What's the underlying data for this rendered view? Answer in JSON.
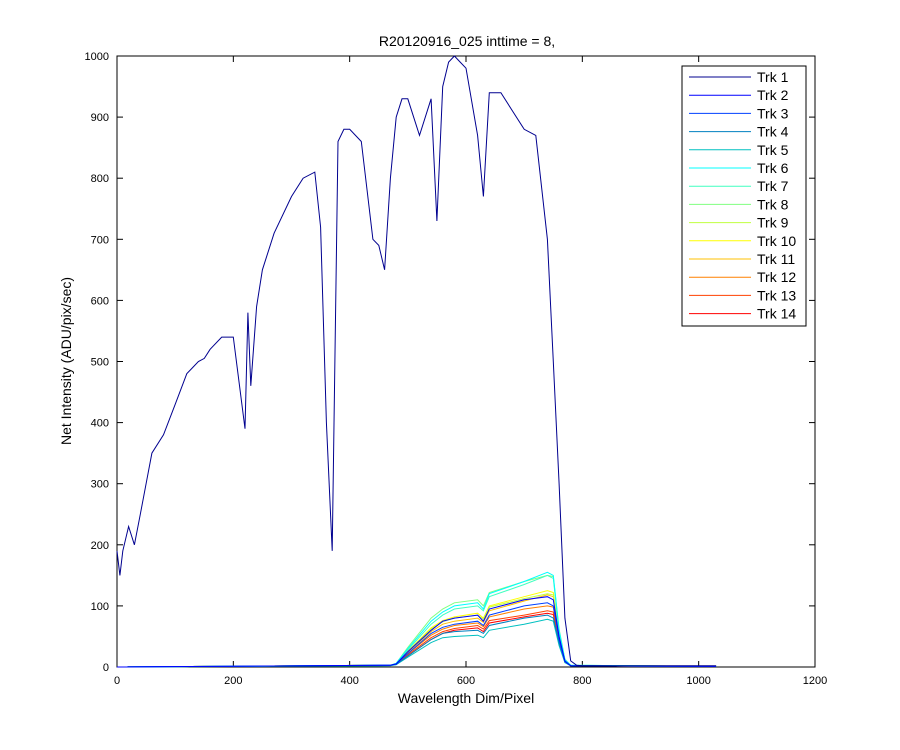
{
  "chart_data": {
    "type": "line",
    "title": "R20120916_025 inttime = 8,",
    "xlabel": "Wavelength Dim/Pixel",
    "ylabel": "Net Intensity (ADU/pix/sec)",
    "xlim": [
      0,
      1200
    ],
    "ylim": [
      0,
      1000
    ],
    "x_ticks": [
      "0",
      "200",
      "400",
      "600",
      "800",
      "1000",
      "1200"
    ],
    "y_ticks": [
      "0",
      "100",
      "200",
      "300",
      "400",
      "500",
      "600",
      "700",
      "800",
      "900",
      "1000"
    ],
    "grid": false,
    "legend_position": "top-right",
    "series": [
      {
        "name": "Trk 1",
        "color": "#00008f",
        "x": [
          0,
          5,
          10,
          20,
          30,
          40,
          50,
          60,
          80,
          100,
          120,
          130,
          140,
          150,
          160,
          180,
          200,
          220,
          225,
          230,
          240,
          250,
          270,
          300,
          320,
          340,
          350,
          360,
          370,
          380,
          390,
          400,
          420,
          440,
          450,
          460,
          470,
          480,
          490,
          500,
          520,
          540,
          550,
          560,
          570,
          580,
          590,
          600,
          620,
          630,
          640,
          660,
          680,
          700,
          720,
          740,
          750,
          760,
          770,
          780,
          790,
          800,
          1030
        ],
        "y": [
          190,
          150,
          190,
          230,
          200,
          250,
          300,
          350,
          380,
          430,
          480,
          490,
          500,
          505,
          520,
          540,
          540,
          390,
          580,
          460,
          590,
          650,
          710,
          770,
          800,
          810,
          720,
          400,
          190,
          860,
          880,
          880,
          860,
          700,
          690,
          650,
          800,
          900,
          930,
          930,
          870,
          930,
          730,
          950,
          990,
          1000,
          990,
          980,
          870,
          770,
          940,
          940,
          910,
          880,
          870,
          700,
          500,
          300,
          80,
          10,
          3,
          2,
          2
        ]
      },
      {
        "name": "Trk 2",
        "color": "#0000ff",
        "x": [
          0,
          470,
          480,
          500,
          540,
          560,
          580,
          620,
          630,
          640,
          700,
          740,
          750,
          760,
          770,
          780,
          1030
        ],
        "y": [
          0,
          3,
          5,
          25,
          60,
          75,
          80,
          85,
          75,
          95,
          110,
          115,
          110,
          50,
          10,
          2,
          1
        ]
      },
      {
        "name": "Trk 3",
        "color": "#0040ff",
        "x": [
          0,
          470,
          480,
          500,
          540,
          560,
          580,
          620,
          630,
          640,
          700,
          740,
          750,
          760,
          770,
          780,
          1030
        ],
        "y": [
          0,
          3,
          5,
          22,
          55,
          65,
          70,
          75,
          68,
          85,
          100,
          105,
          100,
          45,
          9,
          2,
          1
        ]
      },
      {
        "name": "Trk 4",
        "color": "#0080c0",
        "x": [
          0,
          470,
          480,
          500,
          540,
          560,
          580,
          620,
          630,
          640,
          700,
          740,
          750,
          760,
          770,
          780,
          1030
        ],
        "y": [
          0,
          3,
          4,
          18,
          45,
          55,
          58,
          60,
          55,
          68,
          80,
          85,
          80,
          40,
          8,
          2,
          1
        ]
      },
      {
        "name": "Trk 5",
        "color": "#00c0c0",
        "x": [
          0,
          470,
          480,
          500,
          540,
          560,
          580,
          620,
          630,
          640,
          700,
          740,
          750,
          760,
          770,
          780,
          1030
        ],
        "y": [
          0,
          2,
          4,
          16,
          40,
          48,
          50,
          52,
          48,
          60,
          70,
          78,
          75,
          35,
          7,
          2,
          1
        ]
      },
      {
        "name": "Trk 6",
        "color": "#00ffff",
        "x": [
          0,
          470,
          480,
          500,
          540,
          560,
          580,
          620,
          630,
          640,
          700,
          740,
          750,
          760,
          770,
          780,
          1030
        ],
        "y": [
          0,
          3,
          6,
          30,
          75,
          90,
          100,
          105,
          95,
          120,
          140,
          155,
          150,
          60,
          12,
          3,
          1
        ]
      },
      {
        "name": "Trk 7",
        "color": "#40ffc0",
        "x": [
          0,
          470,
          480,
          500,
          540,
          560,
          580,
          620,
          630,
          640,
          700,
          740,
          750,
          760,
          770,
          780,
          1030
        ],
        "y": [
          0,
          3,
          6,
          28,
          70,
          85,
          95,
          100,
          92,
          115,
          135,
          150,
          145,
          58,
          12,
          3,
          1
        ]
      },
      {
        "name": "Trk 8",
        "color": "#80ff80",
        "x": [
          0,
          470,
          480,
          500,
          540,
          560,
          580,
          620,
          630,
          640,
          700,
          740,
          750,
          760,
          770,
          780,
          1030
        ],
        "y": [
          0,
          3,
          6,
          32,
          80,
          95,
          105,
          110,
          100,
          122,
          140,
          150,
          148,
          62,
          13,
          3,
          1
        ]
      },
      {
        "name": "Trk 9",
        "color": "#c0ff40",
        "x": [
          0,
          470,
          480,
          500,
          540,
          560,
          580,
          620,
          630,
          640,
          700,
          740,
          750,
          760,
          770,
          780,
          1030
        ],
        "y": [
          0,
          3,
          5,
          25,
          62,
          74,
          80,
          85,
          78,
          98,
          112,
          120,
          118,
          52,
          10,
          2,
          1
        ]
      },
      {
        "name": "Trk 10",
        "color": "#ffff00",
        "x": [
          0,
          470,
          480,
          500,
          540,
          560,
          580,
          620,
          630,
          640,
          700,
          740,
          750,
          760,
          770,
          780,
          1030
        ],
        "y": [
          0,
          3,
          5,
          26,
          64,
          76,
          82,
          88,
          80,
          100,
          115,
          125,
          122,
          55,
          11,
          2,
          1
        ]
      },
      {
        "name": "Trk 11",
        "color": "#ffc000",
        "x": [
          0,
          470,
          480,
          500,
          540,
          560,
          580,
          620,
          630,
          640,
          700,
          740,
          750,
          760,
          770,
          780,
          1030
        ],
        "y": [
          0,
          3,
          5,
          24,
          58,
          70,
          75,
          80,
          73,
          92,
          108,
          118,
          115,
          50,
          10,
          2,
          1
        ]
      },
      {
        "name": "Trk 12",
        "color": "#ff8000",
        "x": [
          0,
          470,
          480,
          500,
          540,
          560,
          580,
          620,
          630,
          640,
          700,
          740,
          750,
          760,
          770,
          780,
          1030
        ],
        "y": [
          0,
          3,
          5,
          22,
          52,
          62,
          68,
          72,
          66,
          82,
          95,
          100,
          98,
          45,
          9,
          2,
          1
        ]
      },
      {
        "name": "Trk 13",
        "color": "#ff4000",
        "x": [
          0,
          470,
          480,
          500,
          540,
          560,
          580,
          620,
          630,
          640,
          700,
          740,
          750,
          760,
          770,
          780,
          1030
        ],
        "y": [
          0,
          3,
          5,
          20,
          48,
          58,
          63,
          68,
          62,
          76,
          85,
          92,
          90,
          42,
          8,
          2,
          1
        ]
      },
      {
        "name": "Trk 14",
        "color": "#ff0000",
        "x": [
          0,
          470,
          480,
          500,
          540,
          560,
          580,
          620,
          630,
          640,
          700,
          740,
          750,
          760,
          770,
          780,
          1030
        ],
        "y": [
          0,
          3,
          5,
          18,
          45,
          55,
          60,
          64,
          58,
          72,
          82,
          88,
          86,
          40,
          8,
          2,
          1
        ]
      }
    ]
  }
}
